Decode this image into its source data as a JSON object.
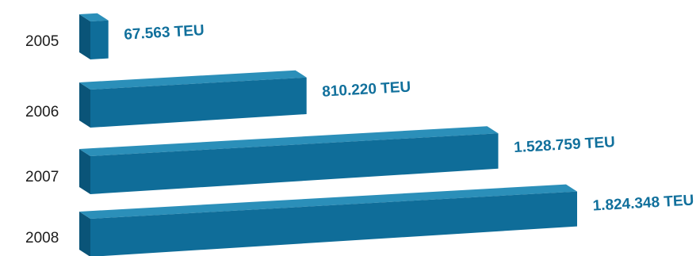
{
  "chart_data": {
    "type": "bar",
    "orientation": "horizontal",
    "style": "3d",
    "categories": [
      "2005",
      "2006",
      "2007",
      "2008"
    ],
    "values": [
      67563,
      810220,
      1528759,
      1824348
    ],
    "value_labels": [
      "67.563 TEU",
      "810.220 TEU",
      "1.528.759 TEU",
      "1.824.348 TEU"
    ],
    "unit": "TEU",
    "title": "",
    "xlabel": "",
    "ylabel": "",
    "grid": false,
    "legend": "none"
  },
  "colors": {
    "bar_front": "#0f6d99",
    "bar_top": "#2b8fb9",
    "bar_side": "#0a5478",
    "label": "#11709c",
    "axis_text": "#1c1c1c"
  }
}
